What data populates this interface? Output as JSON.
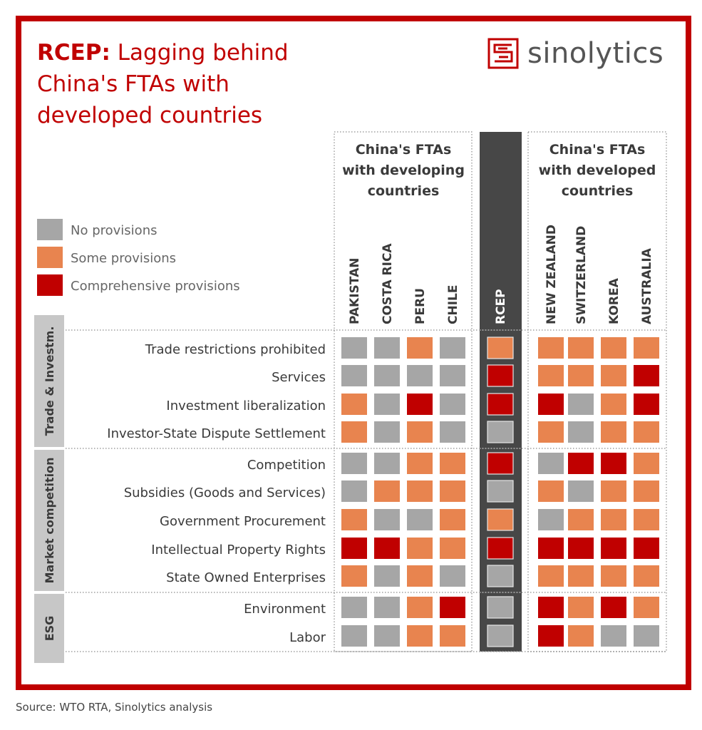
{
  "title": {
    "bold": "RCEP:",
    "rest": "Lagging behind China's FTAs with developed countries"
  },
  "logo": {
    "text": "sinolytics"
  },
  "source": "Source: WTO RTA, Sinolytics analysis",
  "colors": {
    "none": "#a6a6a6",
    "some": "#e8844f",
    "comp": "#c00000",
    "frame": "#c00000",
    "rcep_band": "#474747",
    "group_band": "#c7c7c7"
  },
  "chart_data": {
    "type": "heatmap",
    "title": "RCEP: Lagging behind China's FTAs with developed countries",
    "legend": {
      "placement": "left",
      "entries": [
        {
          "key": "none",
          "label": "No provisions"
        },
        {
          "key": "some",
          "label": "Some provisions"
        },
        {
          "key": "comp",
          "label": "Comprehensive provisions"
        }
      ]
    },
    "column_groups": [
      {
        "label": "China's FTAs with developing countries",
        "columns": [
          "PAKISTAN",
          "COSTA RICA",
          "PERU",
          "CHILE"
        ]
      },
      {
        "label": "",
        "columns": [
          "RCEP"
        ]
      },
      {
        "label": "China's FTAs with developed countries",
        "columns": [
          "NEW ZEALAND",
          "SWITZERLAND",
          "KOREA",
          "AUSTRALIA"
        ]
      }
    ],
    "columns": [
      "PAKISTAN",
      "COSTA RICA",
      "PERU",
      "CHILE",
      "RCEP",
      "NEW ZEALAND",
      "SWITZERLAND",
      "KOREA",
      "AUSTRALIA"
    ],
    "row_groups": [
      {
        "label": "Trade & Investm.",
        "rows": [
          {
            "label": "Trade restrictions prohibited",
            "values": [
              "none",
              "none",
              "some",
              "none",
              "some",
              "some",
              "some",
              "some",
              "some"
            ]
          },
          {
            "label": "Services",
            "values": [
              "none",
              "none",
              "none",
              "none",
              "comp",
              "some",
              "some",
              "some",
              "comp"
            ]
          },
          {
            "label": "Investment liberalization",
            "values": [
              "some",
              "none",
              "comp",
              "none",
              "comp",
              "comp",
              "none",
              "some",
              "comp"
            ]
          },
          {
            "label": "Investor-State Dispute Settlement",
            "values": [
              "some",
              "none",
              "some",
              "none",
              "none",
              "some",
              "none",
              "some",
              "some"
            ]
          }
        ]
      },
      {
        "label": "Market competition",
        "rows": [
          {
            "label": "Competition",
            "values": [
              "none",
              "none",
              "some",
              "some",
              "comp",
              "none",
              "comp",
              "comp",
              "some"
            ]
          },
          {
            "label": "Subsidies (Goods and Services)",
            "values": [
              "none",
              "some",
              "some",
              "some",
              "none",
              "some",
              "none",
              "some",
              "some"
            ]
          },
          {
            "label": "Government Procurement",
            "values": [
              "some",
              "none",
              "none",
              "some",
              "some",
              "none",
              "some",
              "some",
              "some"
            ]
          },
          {
            "label": "Intellectual Property Rights",
            "values": [
              "comp",
              "comp",
              "some",
              "some",
              "comp",
              "comp",
              "comp",
              "comp",
              "comp"
            ]
          },
          {
            "label": "State Owned Enterprises",
            "values": [
              "some",
              "none",
              "some",
              "none",
              "none",
              "some",
              "some",
              "some",
              "some"
            ]
          }
        ]
      },
      {
        "label": "ESG",
        "rows": [
          {
            "label": "Environment",
            "values": [
              "none",
              "none",
              "some",
              "comp",
              "none",
              "comp",
              "some",
              "comp",
              "some"
            ]
          },
          {
            "label": "Labor",
            "values": [
              "none",
              "none",
              "some",
              "some",
              "none",
              "comp",
              "some",
              "none",
              "none"
            ]
          }
        ]
      }
    ]
  }
}
